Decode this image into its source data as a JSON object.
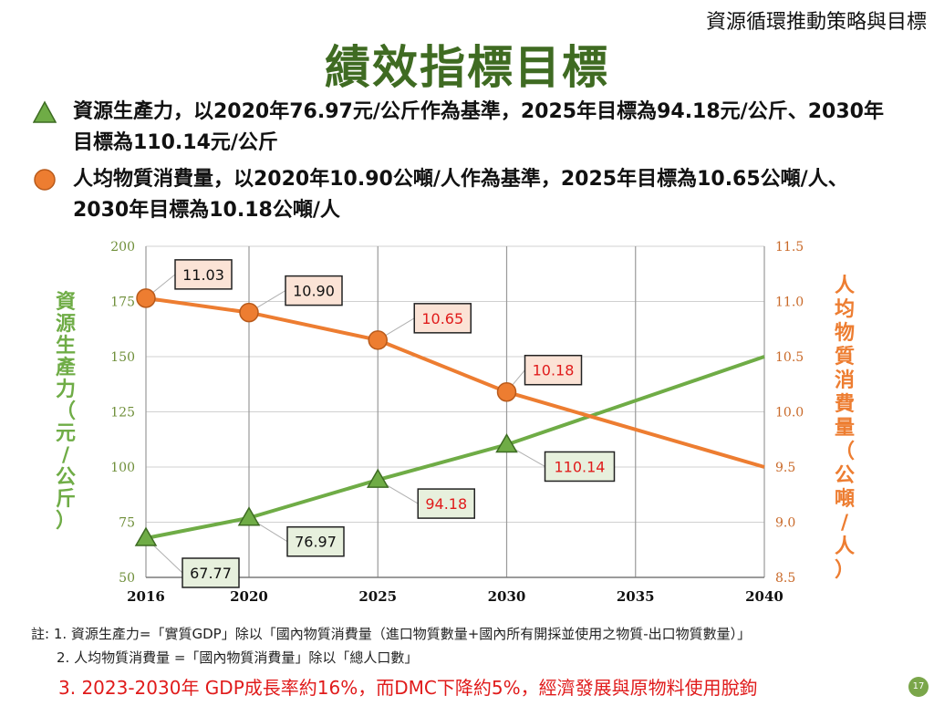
{
  "header": {
    "section_title": "資源循環推動策略與目標",
    "page_title": "績效指標目標"
  },
  "bullets": [
    {
      "marker": "green-triangle",
      "text": "資源生產力，以2020年76.97元/公斤作為基準，2025年目標為94.18元/公斤、2030年目標為110.14元/公斤"
    },
    {
      "marker": "orange-circle",
      "text": "人均物質消費量，以2020年10.90公噸/人作為基準，2025年目標為10.65公噸/人、2030年目標為10.18公噸/人"
    }
  ],
  "chart_data": {
    "type": "line",
    "grid": true,
    "x_ticks": [
      "2016",
      "2020",
      "2025",
      "2030",
      "2035",
      "2040"
    ],
    "xlim": [
      2016,
      2040
    ],
    "left_axis": {
      "label": "資源生產力（元/公斤）",
      "ylim": [
        50,
        200
      ],
      "ticks": [
        "50",
        "75",
        "100",
        "125",
        "150",
        "175",
        "200"
      ]
    },
    "right_axis": {
      "label": "人均物質消費量（公噸/人）",
      "ylim": [
        8.5,
        11.5
      ],
      "ticks": [
        "8.5",
        "9.0",
        "9.5",
        "10.0",
        "10.5",
        "11.0",
        "11.5"
      ]
    },
    "series": [
      {
        "axis": "left",
        "color": "#6fac46",
        "x": [
          2016,
          2020,
          2025,
          2030,
          2040
        ],
        "y": [
          67.77,
          76.97,
          94.18,
          110.14,
          150
        ],
        "markers": [
          {
            "x": 2016,
            "y": 67.77,
            "label": "67.77"
          },
          {
            "x": 2020,
            "y": 76.97,
            "label": "76.97"
          },
          {
            "x": 2025,
            "y": 94.18,
            "label": "94.18"
          },
          {
            "x": 2030,
            "y": 110.14,
            "label": "110.14"
          }
        ]
      },
      {
        "axis": "right",
        "color": "#ed7d31",
        "x": [
          2016,
          2020,
          2025,
          2030,
          2040
        ],
        "y": [
          11.03,
          10.9,
          10.65,
          10.18,
          9.5
        ],
        "markers": [
          {
            "x": 2016,
            "y": 11.03,
            "label": "11.03"
          },
          {
            "x": 2020,
            "y": 10.9,
            "label": "10.90"
          },
          {
            "x": 2025,
            "y": 10.65,
            "label": "10.65"
          },
          {
            "x": 2030,
            "y": 10.18,
            "label": "10.18"
          }
        ]
      }
    ]
  },
  "notes": {
    "n1": "註: 1. 資源生產力=「實質GDP」除以「國內物質消費量（進口物質數量+國內所有開採並使用之物質-出口物質數量）」",
    "n2": "2. 人均物質消費量 =「國內物質消費量」除以「總人口數」",
    "n3": "3. 2023-2030年 GDP成長率約16%，而DMC下降約5%，經濟發展與原物料使用脫鉤"
  },
  "page_number": "17"
}
